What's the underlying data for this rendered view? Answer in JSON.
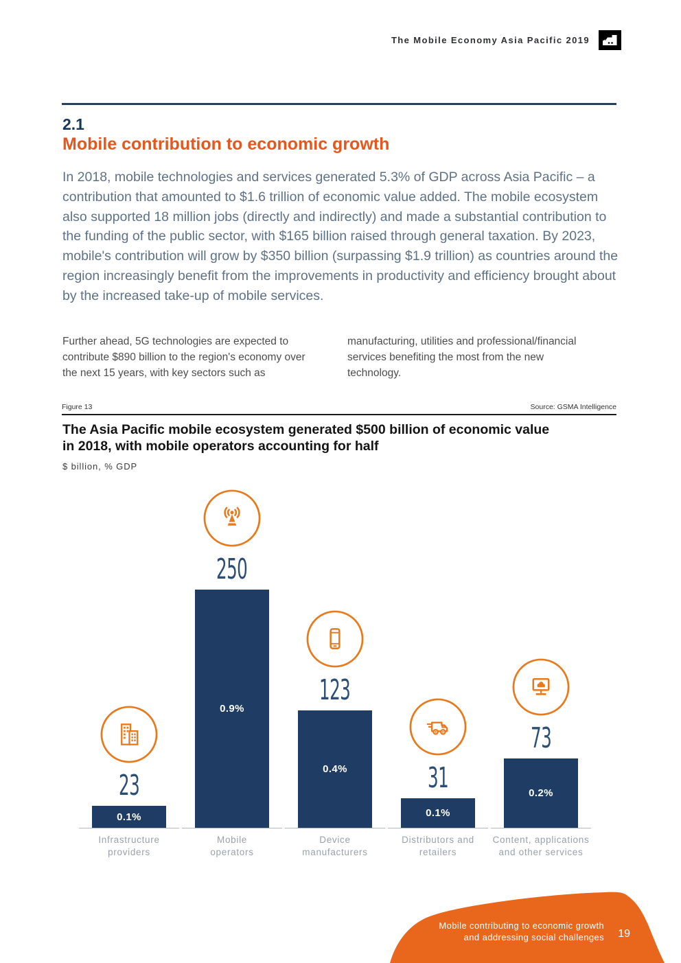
{
  "header": {
    "title": "The Mobile Economy Asia Pacific 2019",
    "logo": "gsma-logo"
  },
  "section": {
    "number": "2.1",
    "title": "Mobile contribution to economic growth"
  },
  "intro": "In 2018, mobile technologies and services generated 5.3% of GDP across Asia Pacific – a contribution that amounted to $1.6 trillion of economic value added. The mobile ecosystem also supported 18 million jobs (directly and indirectly) and made a substantial contribution to the funding of the public sector, with $165 billion raised through general taxation. By 2023, mobile's contribution will grow by $350 billion (surpassing $1.9 trillion) as countries around the region increasingly benefit from the improvements in productivity and efficiency brought about by the increased take-up of mobile services.",
  "columns": {
    "left": "Further ahead, 5G technologies are expected to contribute $890 billion to the region's economy over the next 15 years, with key sectors such as",
    "right": "manufacturing, utilities and professional/financial services benefiting the most from the new technology."
  },
  "figure": {
    "label": "Figure 13",
    "source": "Source: GSMA Intelligence",
    "title_line1": "The Asia Pacific mobile ecosystem generated $500 billion of economic value",
    "title_line2": "in 2018, with mobile operators accounting for half",
    "units": "$ billion, % GDP"
  },
  "chart_data": {
    "type": "bar",
    "title": "The Asia Pacific mobile ecosystem generated $500 billion of economic value in 2018, with mobile operators accounting for half",
    "ylabel": "$ billion",
    "ylim": [
      0,
      250
    ],
    "grid": false,
    "legend": "none",
    "categories": [
      "Infrastructure providers",
      "Mobile operators",
      "Device manufacturers",
      "Distributors and retailers",
      "Content, applications and other services"
    ],
    "label_lines": [
      [
        "Infrastructure",
        "providers"
      ],
      [
        "Mobile",
        "operators"
      ],
      [
        "Device",
        "manufacturers"
      ],
      [
        "Distributors and",
        "retailers"
      ],
      [
        "Content, applications",
        "and other services"
      ]
    ],
    "values": [
      23,
      250,
      123,
      31,
      73
    ],
    "pct_gdp": [
      "0.1%",
      "0.9%",
      "0.4%",
      "0.1%",
      "0.2%"
    ],
    "icons": [
      "building-icon",
      "radio-tower-icon",
      "smartphone-icon",
      "delivery-truck-icon",
      "monitor-cloud-icon"
    ],
    "bar_color": "#1f3d64",
    "value_color": "#2c4e74",
    "icon_color": "#e87a1e"
  },
  "footer": {
    "line1": "Mobile contributing to economic growth",
    "line2": "and addressing social challenges",
    "page": "19",
    "color": "#e8671c"
  },
  "colors": {
    "navy": "#1f3d64",
    "heading_orange": "#e4571e",
    "icon_orange": "#e87a1e",
    "footer_orange": "#e8671c",
    "intro_text": "#5e7185",
    "category_label": "#9aa1a8"
  }
}
